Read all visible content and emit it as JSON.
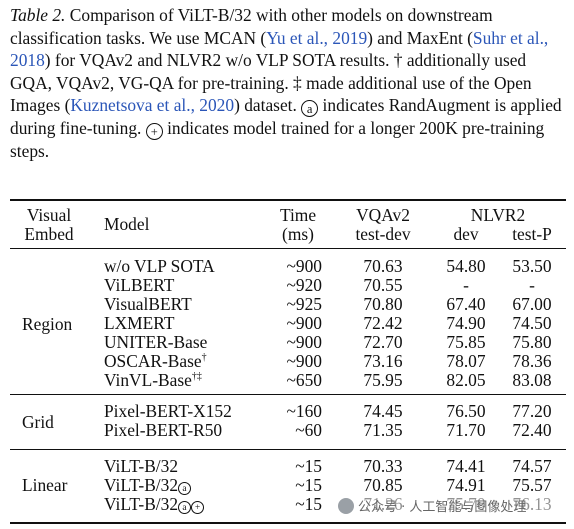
{
  "caption": {
    "label": "Table 2.",
    "seg1": " Comparison of ViLT-B/32 with other models on downstream classification tasks. We use MCAN (",
    "cite1": "Yu et al., 2019",
    "seg2": ") and MaxEnt (",
    "cite2": "Suhr et al., 2018",
    "seg3": ") for VQAv2 and NLVR2 w/o VLP SOTA results. † additionally used GQA, VQAv2, VG-QA for pre-training. ‡ made additional use of the Open Images (",
    "cite3": "Kuznetsova et al., 2020",
    "seg4": ") dataset. ",
    "circ_a": "a",
    "seg5": " indicates RandAugment is applied during fine-tuning. ",
    "circ_plus": "+",
    "seg6": " indicates model trained for a longer 200K pre-training steps."
  },
  "table": {
    "headers": {
      "visual_embed_1": "Visual",
      "visual_embed_2": "Embed",
      "model": "Model",
      "time_1": "Time",
      "time_2": "(ms)",
      "vqa_1": "VQAv2",
      "vqa_2": "test-dev",
      "nlvr": "NLVR2",
      "nlvr_dev": "dev",
      "nlvr_test": "test-P"
    },
    "groups": {
      "region": "Region",
      "grid": "Grid",
      "linear": "Linear"
    },
    "rows": [
      {
        "model": "w/o VLP SOTA",
        "time": "~900",
        "vqa": "70.63",
        "dev": "54.80",
        "test": "53.50"
      },
      {
        "model": "ViLBERT",
        "time": "~920",
        "vqa": "70.55",
        "dev": "-",
        "test": "-"
      },
      {
        "model": "VisualBERT",
        "time": "~925",
        "vqa": "70.80",
        "dev": "67.40",
        "test": "67.00"
      },
      {
        "model": "LXMERT",
        "time": "~900",
        "vqa": "72.42",
        "dev": "74.90",
        "test": "74.50"
      },
      {
        "model": "UNITER-Base",
        "time": "~900",
        "vqa": "72.70",
        "dev": "75.85",
        "test": "75.80"
      },
      {
        "model": "OSCAR-Base",
        "sup": "†",
        "time": "~900",
        "vqa": "73.16",
        "dev": "78.07",
        "test": "78.36"
      },
      {
        "model": "VinVL-Base",
        "sup": "†‡",
        "time": "~650",
        "vqa": "75.95",
        "dev": "82.05",
        "test": "83.08"
      },
      {
        "model": "Pixel-BERT-X152",
        "time": "~160",
        "vqa": "74.45",
        "dev": "76.50",
        "test": "77.20"
      },
      {
        "model": "Pixel-BERT-R50",
        "time": "~60",
        "vqa": "71.35",
        "dev": "71.70",
        "test": "72.40"
      },
      {
        "model": "ViLT-B/32",
        "time": "~15",
        "vqa": "70.33",
        "dev": "74.41",
        "test": "74.57"
      },
      {
        "model": "ViLT-B/32",
        "circ1": "a",
        "time": "~15",
        "vqa": "70.85",
        "dev": "74.91",
        "test": "75.57"
      },
      {
        "model": "ViLT-B/32",
        "circ1": "a",
        "circ2": "+",
        "time": "~15",
        "vqa": "71.26",
        "dev": "75.70",
        "test": "76.13"
      }
    ]
  },
  "watermark": "公众号 · 人工智能与图像处理"
}
